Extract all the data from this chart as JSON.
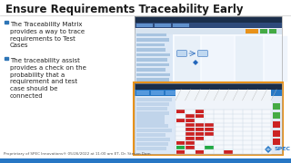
{
  "title": "Ensure Requirements Traceability Early",
  "title_fontsize": 8.5,
  "title_color": "#1a1a1a",
  "bg_color": "#ffffff",
  "bullet_color": "#2e75b6",
  "text_color": "#222222",
  "footer_color": "#555555",
  "footer_text": "Proprietary of SPEC Innovations® 05/26/2022 at 11:00 am ET, Dr. Steven Dam",
  "footer_bar_color": "#2777c4",
  "bullets": [
    "The Traceability Matrix\nprovides a way to trace\nrequirements to Test\nCases",
    "The traceability assist\nprovides a check on the\nprobability that a\nrequirement and test\ncase should be\nconnected"
  ],
  "bullet_fontsize": 5.0,
  "header_dark": "#1a2e4a",
  "header_blue": "#1e6bb8",
  "toolbar_blue": "#2777c4",
  "cell_red": "#cc2222",
  "cell_green": "#22aa44",
  "grid_line": "#cccccc",
  "panel_light": "#e8f0f8",
  "panel_mid": "#c8d8ec",
  "left_panel_bg": "#dce8f6",
  "left_row_color": "#a8c4e0",
  "orange_border": "#e8921a",
  "logo_blue": "#2777c4",
  "upper_bg": "#f0f4fa",
  "lower_bg": "#f0f4fa",
  "diag_line": "#bbbbbb",
  "right_panel_bg": "#e0e8f4"
}
